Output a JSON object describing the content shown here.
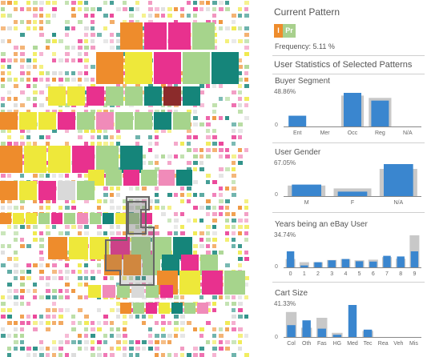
{
  "colors": {
    "orange": "#ee8c2c",
    "yellow": "#eee83a",
    "magenta": "#e8318e",
    "green": "#a6d48c",
    "teal": "#15857a",
    "pink": "#f08bb9",
    "gray": "#d9d9d9",
    "dark_red": "#8b2b2b",
    "bar_blue": "#3a86cf",
    "bar_gray": "#c8c8c8"
  },
  "current_pattern": {
    "title": "Current Pattern",
    "chips": [
      {
        "label": "I",
        "color": "#ee8c2c"
      },
      {
        "label": "Pr",
        "color": "#a8d08d"
      }
    ],
    "frequency_text": "Frequency: 5.11 %"
  },
  "stats_title": "User Statistics of Selected Patterns",
  "sections": [
    {
      "title": "Buyer Segment",
      "max_label": "48.86%",
      "zero": "0",
      "categories": [
        "Ent",
        "Mer",
        "Occ",
        "Reg",
        "N/A"
      ],
      "selected": [
        0.32,
        0.0,
        1.0,
        0.77,
        0.0
      ],
      "overall": [
        0.0,
        0.0,
        0.92,
        0.85,
        0.0
      ]
    },
    {
      "title": "User Gender",
      "max_label": "67.05%",
      "zero": "0",
      "categories": [
        "M",
        "F",
        "N/A"
      ],
      "selected": [
        0.36,
        0.14,
        1.0
      ],
      "overall": [
        0.33,
        0.24,
        0.85
      ]
    },
    {
      "title": "Years being an eBay User",
      "max_label": "34.74%",
      "zero": "0",
      "categories": [
        "0",
        "1",
        "2",
        "3",
        "4",
        "5",
        "6",
        "7",
        "8",
        "9"
      ],
      "selected": [
        0.5,
        0.06,
        0.16,
        0.22,
        0.26,
        0.19,
        0.18,
        0.36,
        0.34,
        0.5
      ],
      "overall": [
        0.26,
        0.16,
        0.16,
        0.23,
        0.26,
        0.22,
        0.24,
        0.32,
        0.27,
        1.0
      ]
    },
    {
      "title": "Cart Size",
      "max_label": "41.33%",
      "zero": "0",
      "categories": [
        "Col",
        "Oth",
        "Fas",
        "HG",
        "Med",
        "Tec",
        "Rea",
        "Veh",
        "Mis"
      ],
      "selected": [
        0.37,
        0.52,
        0.26,
        0.07,
        1.0,
        0.23,
        0.0,
        0.0,
        0.0
      ],
      "overall": [
        0.78,
        0.29,
        0.6,
        0.13,
        0.0,
        0.19,
        0.0,
        0.0,
        0.0
      ]
    }
  ]
}
